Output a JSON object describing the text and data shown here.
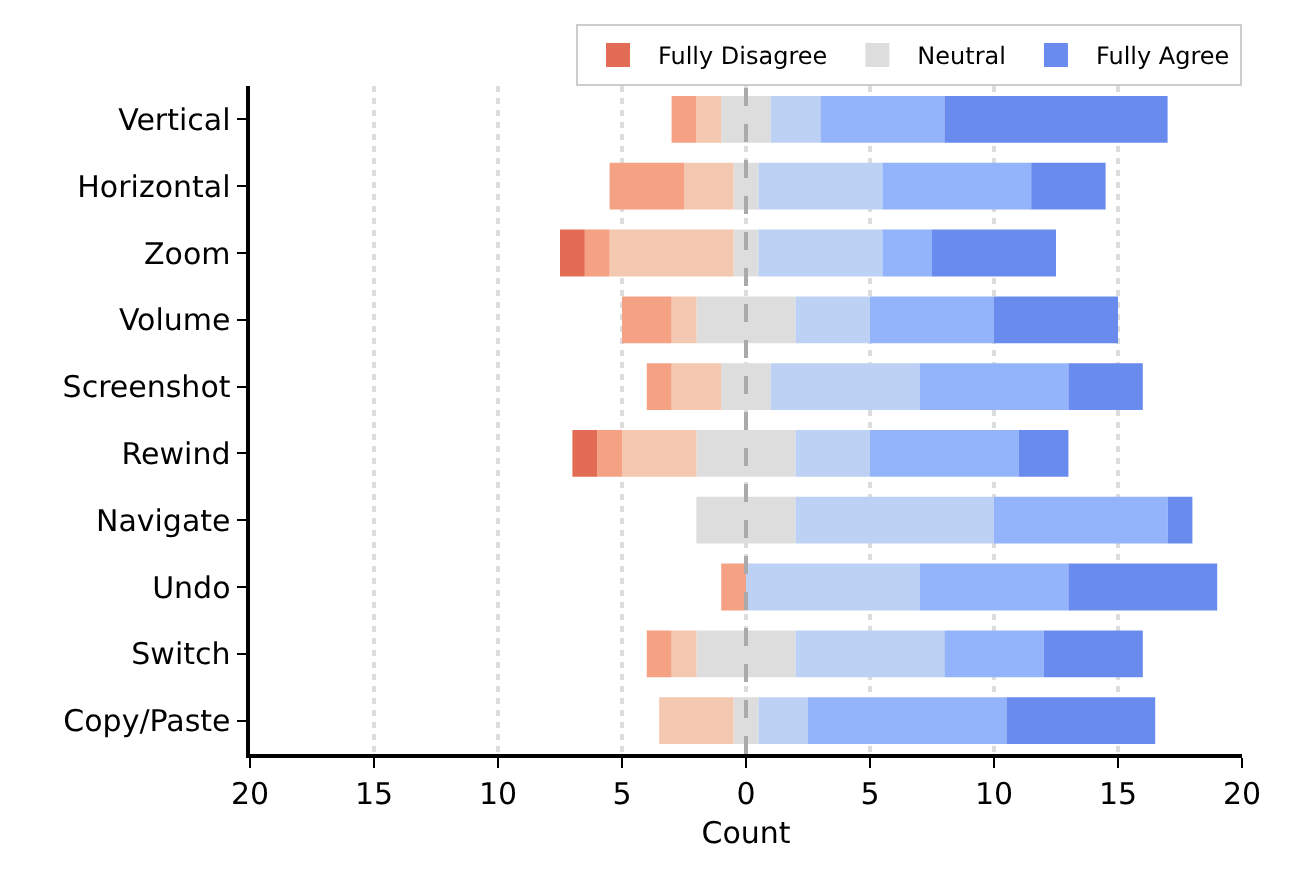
{
  "chart_data": {
    "type": "bar",
    "orientation": "horizontal",
    "stacked": true,
    "xlabel": "Count",
    "categories": [
      "Vertical",
      "Horizontal",
      "Zoom",
      "Volume",
      "Screenshot",
      "Rewind",
      "Navigate",
      "Undo",
      "Switch",
      "Copy/Paste"
    ],
    "series": [
      {
        "color": "#dcdddc",
        "values": [
          -1,
          -0.5,
          -0.5,
          -2,
          -1,
          -2,
          -2,
          0,
          -2,
          -0.5
        ]
      },
      {
        "color": "#f4c7b0",
        "values": [
          -1,
          -2,
          -5,
          -1,
          -2,
          -3,
          0,
          0,
          -1,
          -3
        ]
      },
      {
        "color": "#f4a283",
        "values": [
          -1,
          -3,
          -1,
          -2,
          -1,
          -1,
          0,
          -1,
          -1,
          0
        ]
      },
      {
        "name": "Fully Disagree",
        "color": "#e36c55",
        "values": [
          0,
          0,
          -1,
          0,
          0,
          -1,
          0,
          0,
          0,
          0
        ]
      },
      {
        "name": "Neutral",
        "color": "#dcdddc",
        "values": [
          1,
          0.5,
          0.5,
          2,
          1,
          2,
          2,
          0,
          2,
          0.5
        ]
      },
      {
        "color": "#bdd1f5",
        "values": [
          2,
          5,
          5,
          3,
          6,
          3,
          8,
          7,
          6,
          2
        ]
      },
      {
        "color": "#93b4fb",
        "values": [
          5,
          6,
          2,
          5,
          6,
          6,
          7,
          6,
          4,
          8
        ]
      },
      {
        "name": "Fully Agree",
        "color": "#6a8bee",
        "values": [
          9,
          3,
          5,
          5,
          3,
          2,
          1,
          6,
          4,
          6
        ]
      }
    ],
    "xlim": [
      -20,
      20
    ],
    "xticks": [
      {
        "value": -20,
        "label": "20"
      },
      {
        "value": -15,
        "label": "15"
      },
      {
        "value": -10,
        "label": "10"
      },
      {
        "value": -5,
        "label": "5"
      },
      0,
      5,
      10,
      15,
      20
    ],
    "grid": "x",
    "legend": "top right",
    "ref_lines": [
      {
        "axis": "x",
        "value": 0,
        "color": "#aaaaaa",
        "line_style": "dashed"
      }
    ]
  }
}
